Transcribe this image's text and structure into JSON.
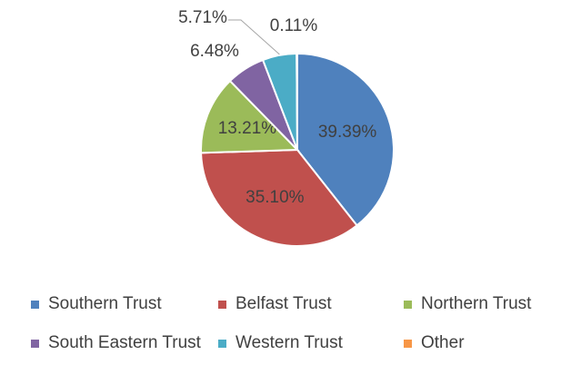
{
  "chart_data": {
    "type": "pie",
    "title": "",
    "labels": [
      "Southern  Trust",
      "Belfast Trust",
      "Northern Trust",
      "South Eastern Trust",
      "Western Trust",
      "Other"
    ],
    "values": [
      39.39,
      35.1,
      13.21,
      6.48,
      5.71,
      0.11
    ],
    "data_labels": [
      "39.39%",
      "35.10%",
      "13.21%",
      "6.48%",
      "5.71%",
      "0.11%"
    ],
    "colors": [
      "#4f81bd",
      "#c0504d",
      "#9bbb59",
      "#8064a2",
      "#4bacc6",
      "#f79646"
    ],
    "legend_position": "bottom",
    "start_angle": "12 o'clock, clockwise"
  }
}
